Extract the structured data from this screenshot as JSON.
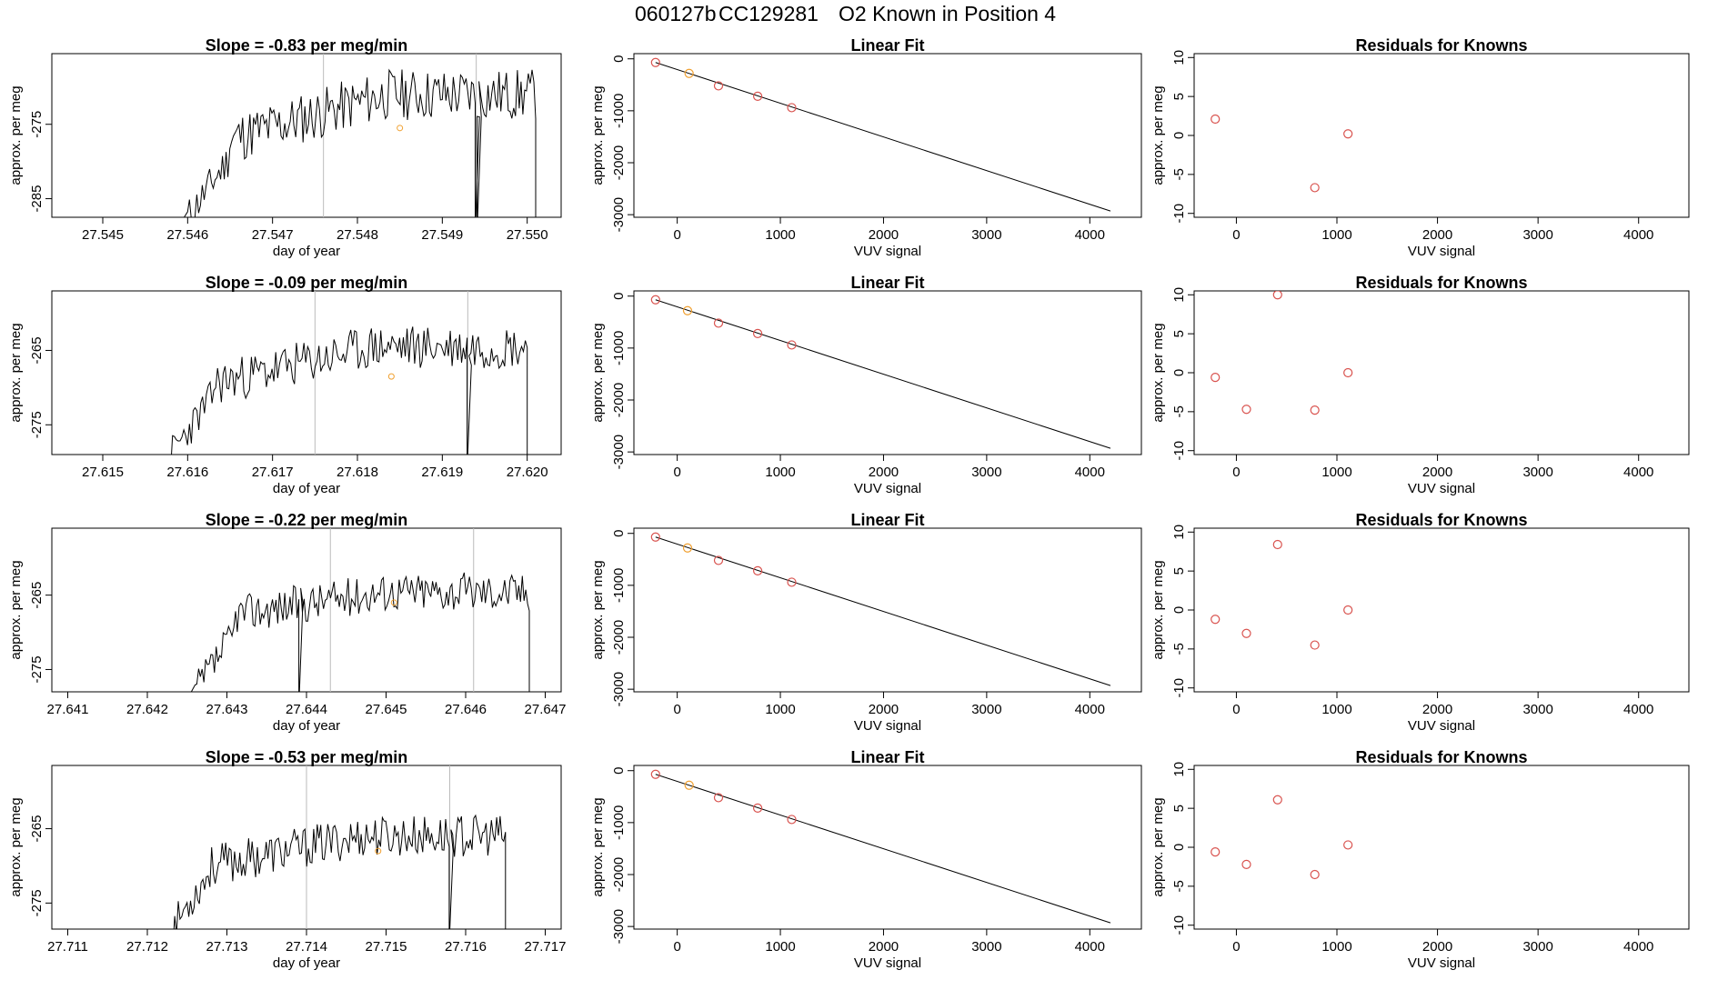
{
  "header": {
    "run_id": "060127b",
    "cylinder": "CC129281",
    "description": "O2 Known in Position  4"
  },
  "colors": {
    "trace": "#000000",
    "marker_red": "#d9534f",
    "marker_orange": "#f0a030",
    "ref_line": "#bbbbbb"
  },
  "chart_data": [
    {
      "type": "line",
      "panel": "time-series",
      "row": 1,
      "title": "Slope =  -0.83  per meg/min",
      "xlabel": "day of year",
      "ylabel": "approx. per meg",
      "x_ticks": [
        "27.545",
        "27.546",
        "27.547",
        "27.548",
        "27.549",
        "27.550"
      ],
      "xlim": [
        27.5444,
        27.5504
      ],
      "y_ticks": [
        "-275",
        "-285"
      ],
      "y_tick_values": [
        -275,
        -285
      ],
      "ylim": [
        -287.5,
        -265.5
      ],
      "ref_lines_x": [
        27.5476,
        27.5494
      ],
      "trace_start": 27.546,
      "trace_end": 27.5501,
      "trace_base": -274,
      "trace_rise": 6,
      "trace_amp": 3.5,
      "marker": {
        "x": 27.5485,
        "y": -275.5
      },
      "dip_x": [
        27.5494
      ],
      "seed": 11
    },
    {
      "type": "scatter",
      "panel": "linear-fit",
      "row": 1,
      "title": "Linear Fit",
      "xlabel": "VUV signal",
      "ylabel": "approx. per meg",
      "x_ticks": [
        "0",
        "1000",
        "2000",
        "3000",
        "4000"
      ],
      "x_tick_values": [
        0,
        1000,
        2000,
        3000,
        4000
      ],
      "xlim": [
        -420,
        4500
      ],
      "y_ticks": [
        "0",
        "-1000",
        "-2000",
        "-3000"
      ],
      "y_tick_values": [
        0,
        -1000,
        -2000,
        -3000
      ],
      "ylim": [
        -3050,
        100
      ],
      "x": [
        -210,
        115,
        400,
        780,
        1110
      ],
      "y": [
        -70,
        -280,
        -520,
        -720,
        -940
      ],
      "highlight_index": 1,
      "fit_line": {
        "x": [
          -210,
          4200
        ],
        "y": [
          -70,
          -2930
        ]
      }
    },
    {
      "type": "scatter",
      "panel": "residuals",
      "row": 1,
      "title": "Residuals for Knowns",
      "xlabel": "VUV signal",
      "ylabel": "approx. per meg",
      "x_ticks": [
        "0",
        "1000",
        "2000",
        "3000",
        "4000"
      ],
      "x_tick_values": [
        0,
        1000,
        2000,
        3000,
        4000
      ],
      "xlim": [
        -420,
        4500
      ],
      "y_ticks": [
        "10",
        "5",
        "0",
        "-5",
        "-10"
      ],
      "y_tick_values": [
        10,
        5,
        0,
        -5,
        -10
      ],
      "ylim": [
        -10.5,
        10.5
      ],
      "x": [
        -210,
        780,
        1110
      ],
      "y": [
        2.1,
        -6.7,
        0.2
      ]
    },
    {
      "type": "line",
      "panel": "time-series",
      "row": 2,
      "title": "Slope =  -0.09  per meg/min",
      "xlabel": "day of year",
      "ylabel": "approx. per meg",
      "x_ticks": [
        "27.615",
        "27.616",
        "27.617",
        "27.618",
        "27.619",
        "27.620"
      ],
      "xlim": [
        27.6144,
        27.6204
      ],
      "y_ticks": [
        "-265",
        "-275"
      ],
      "y_tick_values": [
        -265,
        -275
      ],
      "ylim": [
        -279,
        -257
      ],
      "ref_lines_x": [
        27.6175,
        27.6193
      ],
      "trace_start": 27.6158,
      "trace_end": 27.62,
      "trace_base": -267,
      "trace_rise": 5,
      "trace_amp": 3,
      "marker": {
        "x": 27.6184,
        "y": -268.5
      },
      "dip_x": [
        27.6193
      ],
      "seed": 23
    },
    {
      "type": "scatter",
      "panel": "linear-fit",
      "row": 2,
      "title": "Linear Fit",
      "xlabel": "VUV signal",
      "ylabel": "approx. per meg",
      "x_ticks": [
        "0",
        "1000",
        "2000",
        "3000",
        "4000"
      ],
      "x_tick_values": [
        0,
        1000,
        2000,
        3000,
        4000
      ],
      "xlim": [
        -420,
        4500
      ],
      "y_ticks": [
        "0",
        "-1000",
        "-2000",
        "-3000"
      ],
      "y_tick_values": [
        0,
        -1000,
        -2000,
        -3000
      ],
      "ylim": [
        -3050,
        100
      ],
      "x": [
        -210,
        100,
        400,
        780,
        1110
      ],
      "y": [
        -70,
        -280,
        -520,
        -720,
        -940
      ],
      "highlight_index": 1,
      "fit_line": {
        "x": [
          -210,
          4200
        ],
        "y": [
          -70,
          -2930
        ]
      }
    },
    {
      "type": "scatter",
      "panel": "residuals",
      "row": 2,
      "title": "Residuals for Knowns",
      "xlabel": "VUV signal",
      "ylabel": "approx. per meg",
      "x_ticks": [
        "0",
        "1000",
        "2000",
        "3000",
        "4000"
      ],
      "x_tick_values": [
        0,
        1000,
        2000,
        3000,
        4000
      ],
      "xlim": [
        -420,
        4500
      ],
      "y_ticks": [
        "10",
        "5",
        "0",
        "-5",
        "-10"
      ],
      "y_tick_values": [
        10,
        5,
        0,
        -5,
        -10
      ],
      "ylim": [
        -10.5,
        10.5
      ],
      "x": [
        -210,
        100,
        410,
        780,
        1110
      ],
      "y": [
        -0.6,
        -4.7,
        10.0,
        -4.8,
        0.0
      ]
    },
    {
      "type": "line",
      "panel": "time-series",
      "row": 3,
      "title": "Slope =  -0.22  per meg/min",
      "xlabel": "day of year",
      "ylabel": "approx. per meg",
      "x_ticks": [
        "27.641",
        "27.642",
        "27.643",
        "27.644",
        "27.645",
        "27.646",
        "27.647"
      ],
      "xlim": [
        27.6408,
        27.6472
      ],
      "y_ticks": [
        "-265",
        "-275"
      ],
      "y_tick_values": [
        -265,
        -275
      ],
      "ylim": [
        -278,
        -256
      ],
      "ref_lines_x": [
        27.6443,
        27.6461
      ],
      "trace_start": 27.6426,
      "trace_end": 27.6468,
      "trace_base": -266,
      "trace_rise": 3,
      "trace_amp": 2.6,
      "marker": {
        "x": 27.6451,
        "y": -266
      },
      "dip_x": [
        27.6439
      ],
      "seed": 37
    },
    {
      "type": "scatter",
      "panel": "linear-fit",
      "row": 3,
      "title": "Linear Fit",
      "xlabel": "VUV signal",
      "ylabel": "approx. per meg",
      "x_ticks": [
        "0",
        "1000",
        "2000",
        "3000",
        "4000"
      ],
      "x_tick_values": [
        0,
        1000,
        2000,
        3000,
        4000
      ],
      "xlim": [
        -420,
        4500
      ],
      "y_ticks": [
        "0",
        "-1000",
        "-2000",
        "-3000"
      ],
      "y_tick_values": [
        0,
        -1000,
        -2000,
        -3000
      ],
      "ylim": [
        -3050,
        100
      ],
      "x": [
        -210,
        100,
        400,
        780,
        1110
      ],
      "y": [
        -70,
        -280,
        -520,
        -720,
        -940
      ],
      "highlight_index": 1,
      "fit_line": {
        "x": [
          -210,
          4200
        ],
        "y": [
          -70,
          -2930
        ]
      }
    },
    {
      "type": "scatter",
      "panel": "residuals",
      "row": 3,
      "title": "Residuals for Knowns",
      "xlabel": "VUV signal",
      "ylabel": "approx. per meg",
      "x_ticks": [
        "0",
        "1000",
        "2000",
        "3000",
        "4000"
      ],
      "x_tick_values": [
        0,
        1000,
        2000,
        3000,
        4000
      ],
      "xlim": [
        -420,
        4500
      ],
      "y_ticks": [
        "10",
        "5",
        "0",
        "-5",
        "-10"
      ],
      "y_tick_values": [
        10,
        5,
        0,
        -5,
        -10
      ],
      "ylim": [
        -10.5,
        10.5
      ],
      "x": [
        -210,
        100,
        410,
        780,
        1110
      ],
      "y": [
        -1.2,
        -3.0,
        8.4,
        -4.5,
        0.0
      ]
    },
    {
      "type": "line",
      "panel": "time-series",
      "row": 4,
      "title": "Slope =  -0.53  per meg/min",
      "xlabel": "day of year",
      "ylabel": "approx. per meg",
      "x_ticks": [
        "27.711",
        "27.712",
        "27.713",
        "27.714",
        "27.715",
        "27.716",
        "27.717"
      ],
      "xlim": [
        27.7108,
        27.7172
      ],
      "y_ticks": [
        "-265",
        "-275"
      ],
      "y_tick_values": [
        -265,
        -275
      ],
      "ylim": [
        -278.5,
        -256.5
      ],
      "ref_lines_x": [
        27.714,
        27.7158
      ],
      "trace_start": 27.7123,
      "trace_end": 27.7165,
      "trace_base": -268,
      "trace_rise": 4,
      "trace_amp": 2.8,
      "marker": {
        "x": 27.7149,
        "y": -268
      },
      "dip_x": [
        27.7158
      ],
      "seed": 53
    },
    {
      "type": "scatter",
      "panel": "linear-fit",
      "row": 4,
      "title": "Linear Fit",
      "xlabel": "VUV signal",
      "ylabel": "approx. per meg",
      "x_ticks": [
        "0",
        "1000",
        "2000",
        "3000",
        "4000"
      ],
      "x_tick_values": [
        0,
        1000,
        2000,
        3000,
        4000
      ],
      "xlim": [
        -420,
        4500
      ],
      "y_ticks": [
        "0",
        "-1000",
        "-2000",
        "-3000"
      ],
      "y_tick_values": [
        0,
        -1000,
        -2000,
        -3000
      ],
      "ylim": [
        -3050,
        100
      ],
      "x": [
        -210,
        115,
        400,
        780,
        1110
      ],
      "y": [
        -70,
        -280,
        -520,
        -720,
        -940
      ],
      "highlight_index": 1,
      "fit_line": {
        "x": [
          -210,
          4200
        ],
        "y": [
          -70,
          -2930
        ]
      }
    },
    {
      "type": "scatter",
      "panel": "residuals",
      "row": 4,
      "title": "Residuals for Knowns",
      "xlabel": "VUV signal",
      "ylabel": "approx. per meg",
      "x_ticks": [
        "0",
        "1000",
        "2000",
        "3000",
        "4000"
      ],
      "x_tick_values": [
        0,
        1000,
        2000,
        3000,
        4000
      ],
      "xlim": [
        -420,
        4500
      ],
      "y_ticks": [
        "10",
        "5",
        "0",
        "-5",
        "-10"
      ],
      "y_tick_values": [
        10,
        5,
        0,
        -5,
        -10
      ],
      "ylim": [
        -10.5,
        10.5
      ],
      "x": [
        -210,
        100,
        410,
        780,
        1110
      ],
      "y": [
        -0.6,
        -2.2,
        6.1,
        -3.5,
        0.3
      ]
    }
  ]
}
